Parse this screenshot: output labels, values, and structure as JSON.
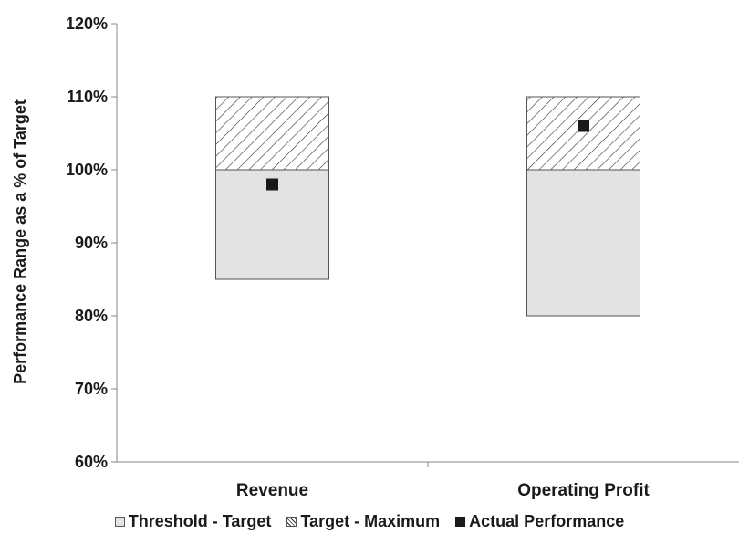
{
  "chart_data": {
    "type": "bar",
    "subtype": "floating-range",
    "title": "",
    "xlabel": "",
    "ylabel": "Performance Range as a % of Target",
    "ylim": [
      60,
      120
    ],
    "yticks": [
      "60%",
      "70%",
      "80%",
      "90%",
      "100%",
      "110%",
      "120%"
    ],
    "ytick_values": [
      60,
      70,
      80,
      90,
      100,
      110,
      120
    ],
    "grid": false,
    "legend_position": "bottom",
    "categories": [
      "Revenue",
      "Operating Profit"
    ],
    "series": [
      {
        "name": "Threshold - Target",
        "ranges": [
          [
            85,
            100
          ],
          [
            80,
            100
          ]
        ],
        "fill": "#e3e3e3"
      },
      {
        "name": "Target - Maximum",
        "ranges": [
          [
            100,
            110
          ],
          [
            100,
            110
          ]
        ],
        "fill": "hatched"
      },
      {
        "name": "Actual Performance",
        "values": [
          98,
          106
        ],
        "marker": "square",
        "color": "#1a1a1a"
      }
    ]
  },
  "legend": {
    "items": [
      {
        "label": "Threshold - Target"
      },
      {
        "label": "Target - Maximum"
      },
      {
        "label": "Actual Performance"
      }
    ]
  }
}
